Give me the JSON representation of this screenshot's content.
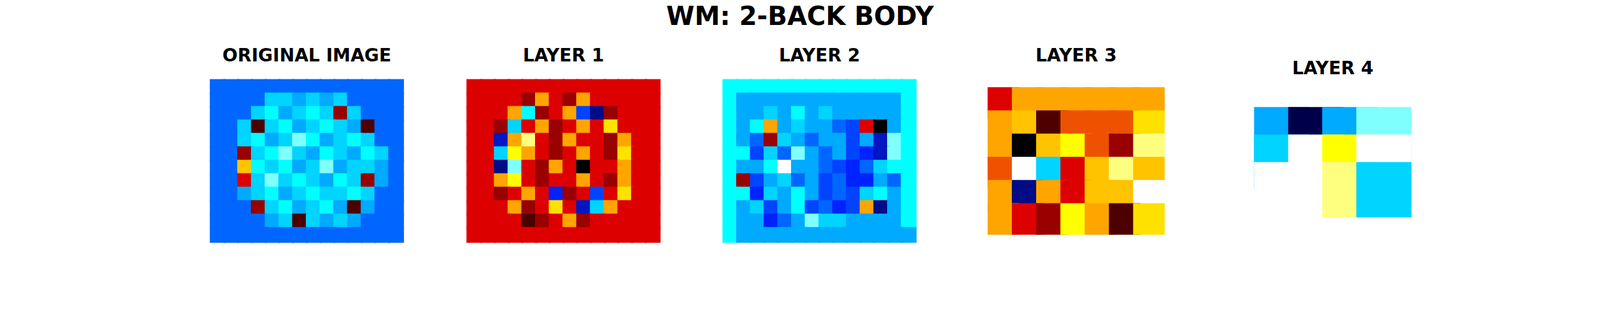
{
  "title": "WM: 2-BACK BODY",
  "chart_data": [
    {
      "type": "heatmap",
      "title": "ORIGINAL IMAGE",
      "zlim": [
        -10,
        10
      ],
      "tick_labels": false,
      "cells": [
        [
          -5,
          -5,
          -5,
          -5,
          -5,
          -5,
          -5,
          -5,
          -5,
          -5,
          -5,
          -5,
          -5,
          -5
        ],
        [
          -5,
          -5,
          -5,
          -5,
          -3,
          -3,
          -4,
          -3,
          -4,
          -3,
          -5,
          -5,
          -5,
          -5
        ],
        [
          -5,
          -5,
          -5,
          -3,
          -2,
          -4,
          -3,
          -2,
          -3,
          8,
          -3,
          -5,
          -5,
          -5
        ],
        [
          -5,
          -5,
          -3,
          9,
          -3,
          -2,
          -4,
          -3,
          -2,
          -3,
          -4,
          9,
          -5,
          -5
        ],
        [
          -5,
          -5,
          -3,
          -2,
          -4,
          -3,
          -1,
          -2,
          -4,
          -3,
          -2,
          -3,
          -5,
          -5
        ],
        [
          -5,
          -5,
          8,
          -3,
          -2,
          -1,
          -3,
          -4,
          -2,
          -3,
          -4,
          -2,
          -3,
          -5
        ],
        [
          -5,
          -5,
          4,
          -2,
          -3,
          -2,
          -4,
          -3,
          -1,
          -4,
          -3,
          -3,
          -4,
          -5
        ],
        [
          -5,
          -5,
          7,
          -3,
          -1,
          -3,
          -2,
          -3,
          -4,
          -2,
          -3,
          8,
          -4,
          -5
        ],
        [
          -5,
          -5,
          -4,
          -3,
          -2,
          -4,
          -3,
          -2,
          -3,
          -3,
          -2,
          -3,
          -5,
          -5
        ],
        [
          -5,
          -5,
          -5,
          8,
          -3,
          -2,
          -4,
          -3,
          -2,
          -4,
          9,
          -4,
          -5,
          -5
        ],
        [
          -5,
          -5,
          -5,
          -5,
          -4,
          -3,
          9,
          -3,
          -4,
          -3,
          -4,
          -5,
          -5,
          -5
        ],
        [
          -5,
          -5,
          -5,
          -5,
          -5,
          -5,
          -5,
          -5,
          -5,
          -5,
          -5,
          -5,
          -5,
          -5
        ]
      ]
    },
    {
      "type": "heatmap",
      "title": "LAYER 1",
      "zlim": [
        -10,
        10
      ],
      "tick_labels": false,
      "cells": [
        [
          7,
          7,
          7,
          7,
          7,
          7,
          7,
          7,
          7,
          7,
          7,
          7,
          7,
          7
        ],
        [
          7,
          7,
          7,
          7,
          8,
          5,
          7,
          8,
          5,
          7,
          7,
          7,
          7,
          7
        ],
        [
          7,
          7,
          7,
          5,
          -2,
          8,
          7,
          5,
          -6,
          -9,
          8,
          7,
          7,
          7
        ],
        [
          7,
          7,
          8,
          -3,
          7,
          5,
          8,
          7,
          5,
          7,
          3,
          7,
          7,
          7
        ],
        [
          7,
          7,
          -8,
          5,
          1,
          7,
          8,
          5,
          7,
          7,
          8,
          5,
          7,
          7
        ],
        [
          7,
          7,
          -3,
          2,
          5,
          7,
          8,
          7,
          5,
          7,
          8,
          3,
          7,
          7
        ],
        [
          7,
          7,
          -9,
          -1,
          7,
          8,
          5,
          7,
          10,
          7,
          7,
          5,
          7,
          7
        ],
        [
          7,
          7,
          5,
          2,
          7,
          8,
          7,
          7,
          5,
          7,
          8,
          5,
          7,
          7
        ],
        [
          7,
          7,
          8,
          7,
          5,
          7,
          -7,
          8,
          7,
          -6,
          7,
          3,
          7,
          7
        ],
        [
          7,
          7,
          7,
          5,
          8,
          7,
          3,
          7,
          -8,
          -3,
          5,
          7,
          7,
          7
        ],
        [
          7,
          7,
          7,
          7,
          9,
          8,
          7,
          5,
          8,
          7,
          7,
          7,
          7,
          7
        ],
        [
          7,
          7,
          7,
          7,
          7,
          7,
          7,
          7,
          7,
          7,
          7,
          7,
          7,
          7
        ]
      ]
    },
    {
      "type": "heatmap",
      "title": "LAYER 2",
      "zlim": [
        -10,
        10
      ],
      "tick_labels": false,
      "cells": [
        [
          -2,
          -2,
          -2,
          -2,
          -2,
          -2,
          -2,
          -2,
          -2,
          -2,
          -2,
          -2,
          -2,
          -2
        ],
        [
          -2,
          -4,
          -4,
          -4,
          -4,
          -4,
          -4,
          -4,
          -4,
          -4,
          -4,
          -4,
          -4,
          -2
        ],
        [
          -2,
          -4,
          -4,
          -3,
          -4,
          -2,
          -4,
          -3,
          -4,
          -4,
          -4,
          -4,
          -4,
          -2
        ],
        [
          -2,
          -4,
          -2,
          5,
          -4,
          -3,
          -4,
          -4,
          -5,
          -6,
          7,
          10,
          -4,
          -2
        ],
        [
          -2,
          -4,
          -5,
          8,
          -3,
          -4,
          -5,
          -4,
          -4,
          -6,
          -4,
          -8,
          -1,
          -2
        ],
        [
          -2,
          -2,
          -6,
          -3,
          -5,
          -1,
          -4,
          -5,
          -4,
          -6,
          -7,
          -8,
          -1,
          -2
        ],
        [
          -2,
          -4,
          -4,
          -2,
          0,
          -4,
          -4,
          -5,
          -6,
          -7,
          -5,
          -3,
          -2,
          -2
        ],
        [
          -2,
          8,
          -6,
          -4,
          -3,
          -5,
          -4,
          -6,
          -5,
          -7,
          -7,
          -4,
          -5,
          -2
        ],
        [
          -2,
          -2,
          -7,
          -3,
          -4,
          -2,
          -4,
          -6,
          -5,
          -6,
          -3,
          -2,
          -4,
          -2
        ],
        [
          -2,
          -4,
          -3,
          -6,
          -4,
          -2,
          -6,
          -5,
          -7,
          -6,
          5,
          -9,
          -4,
          -2
        ],
        [
          -2,
          -4,
          -4,
          -7,
          -5,
          -4,
          -1,
          -3,
          -3,
          -4,
          -4,
          -4,
          -4,
          -2
        ],
        [
          -2,
          -4,
          -4,
          -4,
          -4,
          -4,
          -4,
          -4,
          -4,
          -4,
          -4,
          -4,
          -4,
          -4
        ]
      ]
    },
    {
      "type": "heatmap",
      "title": "LAYER 3",
      "zlim": [
        -10,
        10
      ],
      "tick_labels": false,
      "cells": [
        [
          7,
          5,
          5,
          5,
          5,
          5,
          5
        ],
        [
          5,
          4,
          9,
          6,
          6,
          6,
          3
        ],
        [
          5,
          10,
          4,
          2,
          6,
          8,
          1
        ],
        [
          6,
          0,
          -3,
          7,
          4,
          1,
          4
        ],
        [
          5,
          -9,
          5,
          7,
          4,
          4,
          0
        ],
        [
          5,
          7,
          8,
          2,
          5,
          9,
          3
        ]
      ]
    },
    {
      "type": "heatmap",
      "title": "LAYER 4",
      "zlim": [
        -10,
        10
      ],
      "tick_labels": false,
      "cells": [
        [
          -4,
          -10,
          -4,
          -1
        ],
        [
          -3,
          0,
          2,
          0
        ],
        [
          0,
          0,
          1,
          -3
        ]
      ]
    }
  ]
}
